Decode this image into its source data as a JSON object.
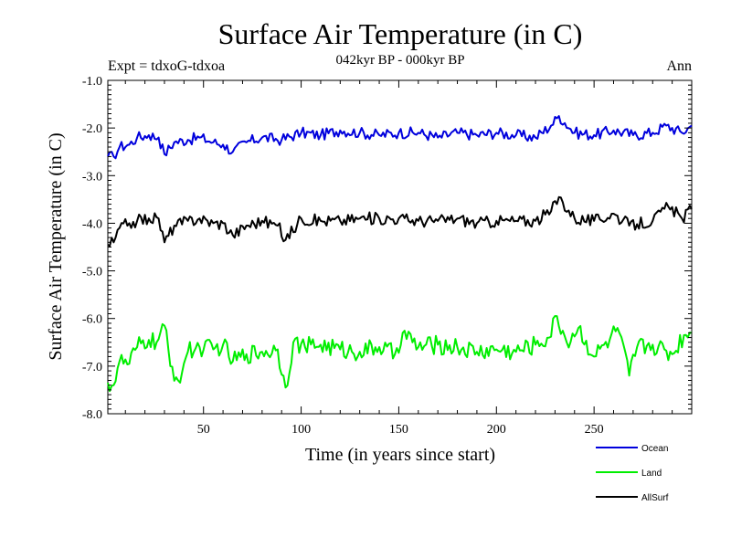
{
  "chart_data": {
    "type": "line",
    "title": "Surface Air Temperature (in C)",
    "subtitle": "042kyr BP - 000kyr BP",
    "left_label": "Expt = tdxoG-tdxoa",
    "right_label": "Ann",
    "xlabel": "Time (in years since start)",
    "ylabel": "Surface Air Temperature (in C)",
    "xlim": [
      1,
      300
    ],
    "ylim": [
      -8.0,
      -1.0
    ],
    "xticks": [
      50,
      100,
      150,
      200,
      250
    ],
    "yticks": [
      -8.0,
      -7.0,
      -6.0,
      -5.0,
      -4.0,
      -3.0,
      -2.0,
      -1.0
    ],
    "ytick_labels": [
      "-8.0",
      "-7.0",
      "-6.0",
      "-5.0",
      "-4.0",
      "-3.0",
      "-2.0",
      "-1.0"
    ],
    "grid": false,
    "legend_position": "bottom-right, below plot",
    "series": [
      {
        "name": "Ocean",
        "color": "#0000dd",
        "anchors": [
          [
            1,
            -2.6
          ],
          [
            4,
            -2.6
          ],
          [
            7,
            -2.4
          ],
          [
            12,
            -2.35
          ],
          [
            16,
            -2.2
          ],
          [
            22,
            -2.15
          ],
          [
            27,
            -2.2
          ],
          [
            30,
            -2.55
          ],
          [
            35,
            -2.3
          ],
          [
            42,
            -2.25
          ],
          [
            48,
            -2.2
          ],
          [
            55,
            -2.3
          ],
          [
            60,
            -2.35
          ],
          [
            65,
            -2.5
          ],
          [
            72,
            -2.3
          ],
          [
            80,
            -2.2
          ],
          [
            90,
            -2.25
          ],
          [
            100,
            -2.1
          ],
          [
            110,
            -2.15
          ],
          [
            120,
            -2.05
          ],
          [
            130,
            -2.1
          ],
          [
            140,
            -2.15
          ],
          [
            150,
            -2.1
          ],
          [
            160,
            -2.1
          ],
          [
            170,
            -2.2
          ],
          [
            180,
            -2.1
          ],
          [
            190,
            -2.15
          ],
          [
            200,
            -2.1
          ],
          [
            210,
            -2.15
          ],
          [
            220,
            -2.2
          ],
          [
            228,
            -1.95
          ],
          [
            232,
            -1.75
          ],
          [
            240,
            -2.1
          ],
          [
            250,
            -2.15
          ],
          [
            260,
            -2.05
          ],
          [
            270,
            -2.15
          ],
          [
            280,
            -2.1
          ],
          [
            287,
            -1.95
          ],
          [
            295,
            -2.1
          ],
          [
            300,
            -1.95
          ]
        ]
      },
      {
        "name": "Land",
        "color": "#00ee00",
        "anchors": [
          [
            1,
            -7.35
          ],
          [
            4,
            -7.4
          ],
          [
            7,
            -6.9
          ],
          [
            12,
            -6.95
          ],
          [
            16,
            -6.6
          ],
          [
            22,
            -6.45
          ],
          [
            26,
            -6.5
          ],
          [
            30,
            -6.15
          ],
          [
            33,
            -7.0
          ],
          [
            37,
            -7.3
          ],
          [
            42,
            -6.7
          ],
          [
            48,
            -6.6
          ],
          [
            55,
            -6.65
          ],
          [
            60,
            -6.55
          ],
          [
            65,
            -6.9
          ],
          [
            72,
            -6.75
          ],
          [
            80,
            -6.7
          ],
          [
            88,
            -6.65
          ],
          [
            92,
            -7.45
          ],
          [
            96,
            -6.5
          ],
          [
            102,
            -6.6
          ],
          [
            110,
            -6.55
          ],
          [
            120,
            -6.65
          ],
          [
            130,
            -6.7
          ],
          [
            140,
            -6.6
          ],
          [
            148,
            -6.75
          ],
          [
            152,
            -6.3
          ],
          [
            160,
            -6.6
          ],
          [
            170,
            -6.55
          ],
          [
            180,
            -6.6
          ],
          [
            190,
            -6.7
          ],
          [
            200,
            -6.65
          ],
          [
            210,
            -6.7
          ],
          [
            220,
            -6.55
          ],
          [
            227,
            -6.4
          ],
          [
            231,
            -5.95
          ],
          [
            236,
            -6.5
          ],
          [
            242,
            -6.2
          ],
          [
            250,
            -6.8
          ],
          [
            258,
            -6.45
          ],
          [
            262,
            -6.2
          ],
          [
            268,
            -7.2
          ],
          [
            272,
            -6.6
          ],
          [
            280,
            -6.55
          ],
          [
            290,
            -6.75
          ],
          [
            296,
            -6.35
          ],
          [
            300,
            -6.3
          ]
        ]
      },
      {
        "name": "AllSurf",
        "color": "#000000",
        "anchors": [
          [
            1,
            -4.45
          ],
          [
            4,
            -4.4
          ],
          [
            7,
            -4.1
          ],
          [
            12,
            -4.0
          ],
          [
            16,
            -3.95
          ],
          [
            22,
            -3.9
          ],
          [
            27,
            -3.9
          ],
          [
            30,
            -4.4
          ],
          [
            35,
            -4.05
          ],
          [
            42,
            -3.95
          ],
          [
            48,
            -3.9
          ],
          [
            55,
            -4.0
          ],
          [
            60,
            -4.0
          ],
          [
            65,
            -4.25
          ],
          [
            72,
            -4.05
          ],
          [
            80,
            -3.95
          ],
          [
            88,
            -4.05
          ],
          [
            92,
            -4.35
          ],
          [
            100,
            -3.9
          ],
          [
            110,
            -3.95
          ],
          [
            120,
            -3.95
          ],
          [
            130,
            -3.9
          ],
          [
            140,
            -3.9
          ],
          [
            150,
            -3.9
          ],
          [
            160,
            -3.95
          ],
          [
            170,
            -3.95
          ],
          [
            180,
            -3.9
          ],
          [
            190,
            -4.0
          ],
          [
            200,
            -3.95
          ],
          [
            210,
            -3.95
          ],
          [
            220,
            -3.95
          ],
          [
            228,
            -3.75
          ],
          [
            232,
            -3.45
          ],
          [
            240,
            -3.9
          ],
          [
            250,
            -3.95
          ],
          [
            260,
            -3.8
          ],
          [
            268,
            -4.05
          ],
          [
            280,
            -3.95
          ],
          [
            288,
            -3.65
          ],
          [
            295,
            -3.9
          ],
          [
            300,
            -3.7
          ]
        ]
      }
    ]
  }
}
